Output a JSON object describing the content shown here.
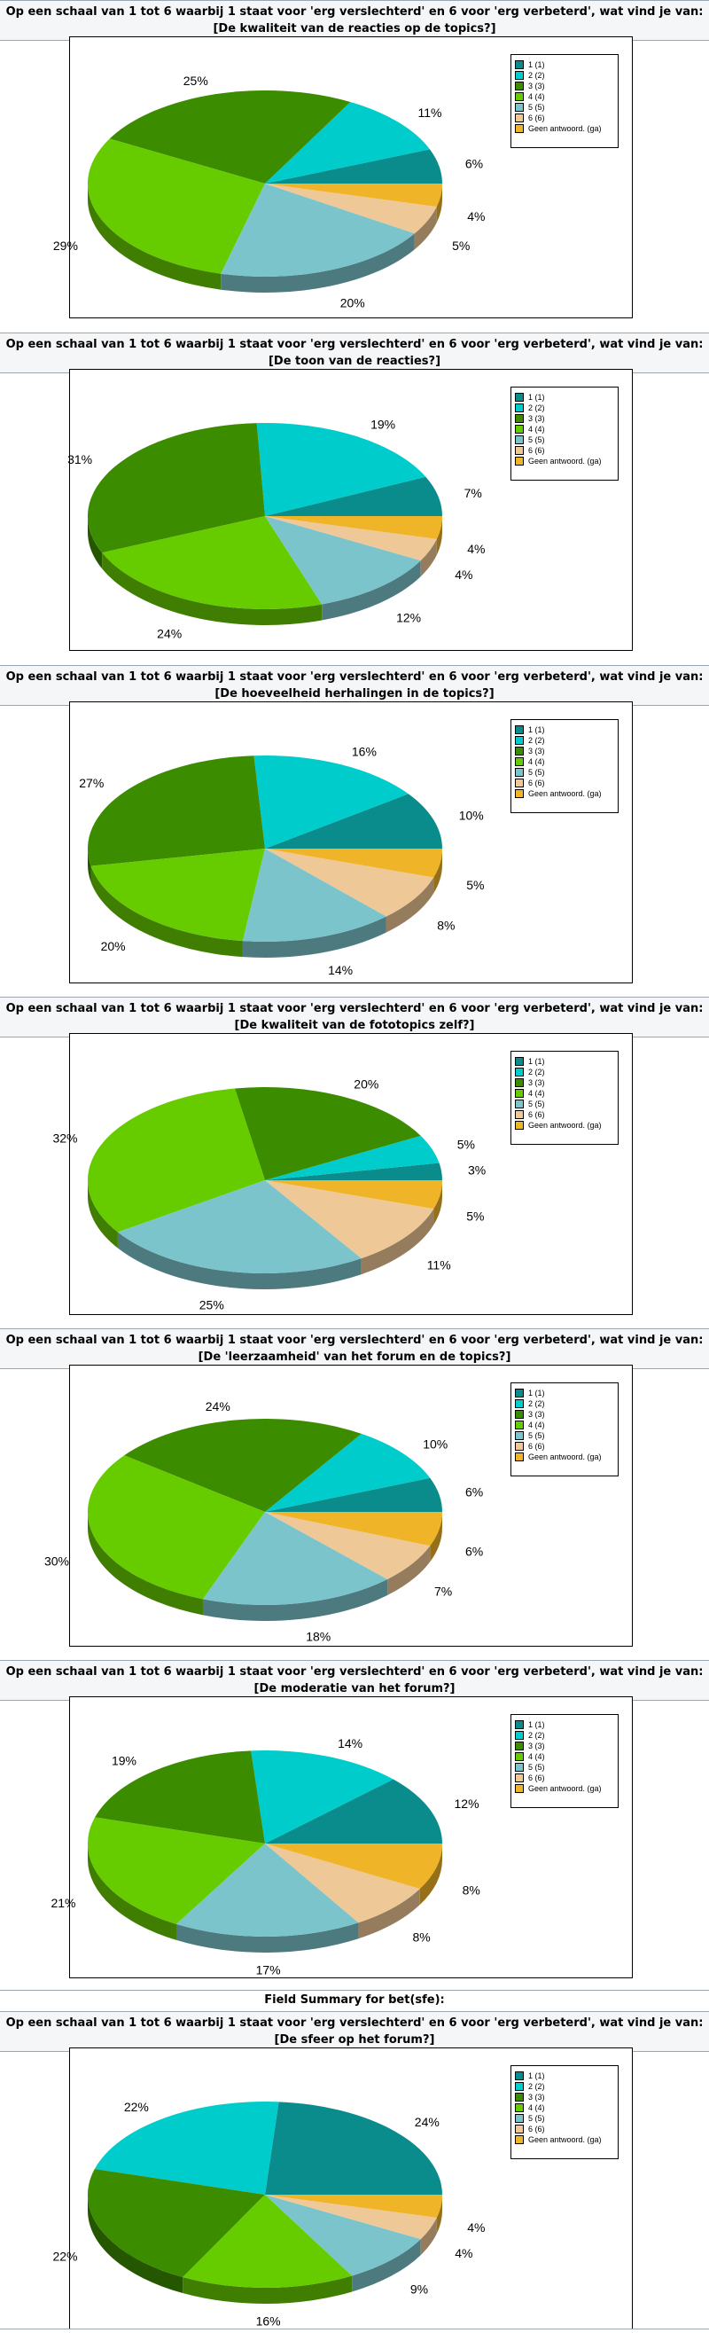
{
  "legend": {
    "entries": [
      {
        "label": "1 (1)",
        "color": "#0a8c8c"
      },
      {
        "label": "2 (2)",
        "color": "#00cccc"
      },
      {
        "label": "3 (3)",
        "color": "#3c8c00"
      },
      {
        "label": "4 (4)",
        "color": "#66cc00"
      },
      {
        "label": "5 (5)",
        "color": "#7cc4cc"
      },
      {
        "label": "6 (6)",
        "color": "#eec896"
      },
      {
        "label": "Geen antwoord. (ga)",
        "color": "#f0b428"
      }
    ]
  },
  "field_summary_label": "Field Summary for bet(sfe):",
  "questions": [
    {
      "line1": "Op een schaal van 1 tot 6 waarbij 1 staat voor 'erg verslechterd' en 6 voor 'erg verbeterd', wat vind je van:",
      "line2": "[De kwaliteit van de reacties op de topics?]"
    },
    {
      "line1": "Op een schaal van 1 tot 6 waarbij 1 staat voor 'erg verslechterd' en 6 voor 'erg verbeterd', wat vind je van:",
      "line2": "[De toon van de reacties?]"
    },
    {
      "line1": "Op een schaal van 1 tot 6 waarbij 1 staat voor 'erg verslechterd' en 6 voor 'erg verbeterd', wat vind je van:",
      "line2": "[De hoeveelheid herhalingen in de topics?]"
    },
    {
      "line1": "Op een schaal van 1 tot 6 waarbij 1 staat voor 'erg verslechterd' en 6 voor 'erg verbeterd', wat vind je van:",
      "line2": "[De kwaliteit van de fototopics zelf?]"
    },
    {
      "line1": "Op een schaal van 1 tot 6 waarbij 1 staat voor 'erg verslechterd' en 6 voor 'erg verbeterd', wat vind je van:",
      "line2": "[De 'leerzaamheid' van het forum en de topics?]"
    },
    {
      "line1": "Op een schaal van 1 tot 6 waarbij 1 staat voor 'erg verslechterd' en 6 voor 'erg verbeterd', wat vind je van:",
      "line2": "[De moderatie van het forum?]"
    },
    {
      "line1": "Op een schaal van 1 tot 6 waarbij 1 staat voor 'erg verslechterd' en 6 voor 'erg verbeterd', wat vind je van:",
      "line2": "[De sfeer op het forum?]"
    }
  ],
  "chart_data": [
    {
      "type": "pie",
      "categories": [
        "1 (1)",
        "2 (2)",
        "3 (3)",
        "4 (4)",
        "5 (5)",
        "6 (6)",
        "Geen antwoord. (ga)"
      ],
      "values": [
        6,
        11,
        25,
        29,
        20,
        5,
        4
      ],
      "labels": [
        "6%",
        "11%",
        "25%",
        "29%",
        "20%",
        "5%",
        "4%"
      ],
      "legend_position": "top-right"
    },
    {
      "type": "pie",
      "categories": [
        "1 (1)",
        "2 (2)",
        "3 (3)",
        "4 (4)",
        "5 (5)",
        "6 (6)",
        "Geen antwoord. (ga)"
      ],
      "values": [
        7,
        19,
        31,
        24,
        12,
        4,
        4
      ],
      "labels": [
        "7%",
        "19%",
        "31%",
        "24%",
        "12%",
        "4%",
        "4%"
      ],
      "legend_position": "top-right"
    },
    {
      "type": "pie",
      "categories": [
        "1 (1)",
        "2 (2)",
        "3 (3)",
        "4 (4)",
        "5 (5)",
        "6 (6)",
        "Geen antwoord. (ga)"
      ],
      "values": [
        10,
        16,
        27,
        20,
        14,
        8,
        5
      ],
      "labels": [
        "10%",
        "16%",
        "27%",
        "20%",
        "14%",
        "8%",
        "5%"
      ],
      "legend_position": "top-right"
    },
    {
      "type": "pie",
      "categories": [
        "1 (1)",
        "2 (2)",
        "3 (3)",
        "4 (4)",
        "5 (5)",
        "6 (6)",
        "Geen antwoord. (ga)"
      ],
      "values": [
        3,
        5,
        20,
        32,
        25,
        11,
        5
      ],
      "labels": [
        "3%",
        "5%",
        "20%",
        "32%",
        "25%",
        "11%",
        "5%"
      ],
      "legend_position": "top-right"
    },
    {
      "type": "pie",
      "categories": [
        "1 (1)",
        "2 (2)",
        "3 (3)",
        "4 (4)",
        "5 (5)",
        "6 (6)",
        "Geen antwoord. (ga)"
      ],
      "values": [
        6,
        10,
        24,
        30,
        18,
        7,
        6
      ],
      "labels": [
        "6%",
        "10%",
        "24%",
        "30%",
        "18%",
        "7%",
        "6%"
      ],
      "legend_position": "top-right"
    },
    {
      "type": "pie",
      "categories": [
        "1 (1)",
        "2 (2)",
        "3 (3)",
        "4 (4)",
        "5 (5)",
        "6 (6)",
        "Geen antwoord. (ga)"
      ],
      "values": [
        12,
        14,
        19,
        21,
        17,
        8,
        8
      ],
      "labels": [
        "12%",
        "14%",
        "19%",
        "21%",
        "17%",
        "8%",
        "8%"
      ],
      "legend_position": "top-right"
    },
    {
      "type": "pie",
      "categories": [
        "1 (1)",
        "2 (2)",
        "3 (3)",
        "4 (4)",
        "5 (5)",
        "6 (6)",
        "Geen antwoord. (ga)"
      ],
      "values": [
        24,
        22,
        22,
        16,
        9,
        4,
        4
      ],
      "labels": [
        "24%",
        "22%",
        "22%",
        "16%",
        "9%",
        "4%",
        "4%"
      ],
      "legend_position": "top-right"
    }
  ]
}
